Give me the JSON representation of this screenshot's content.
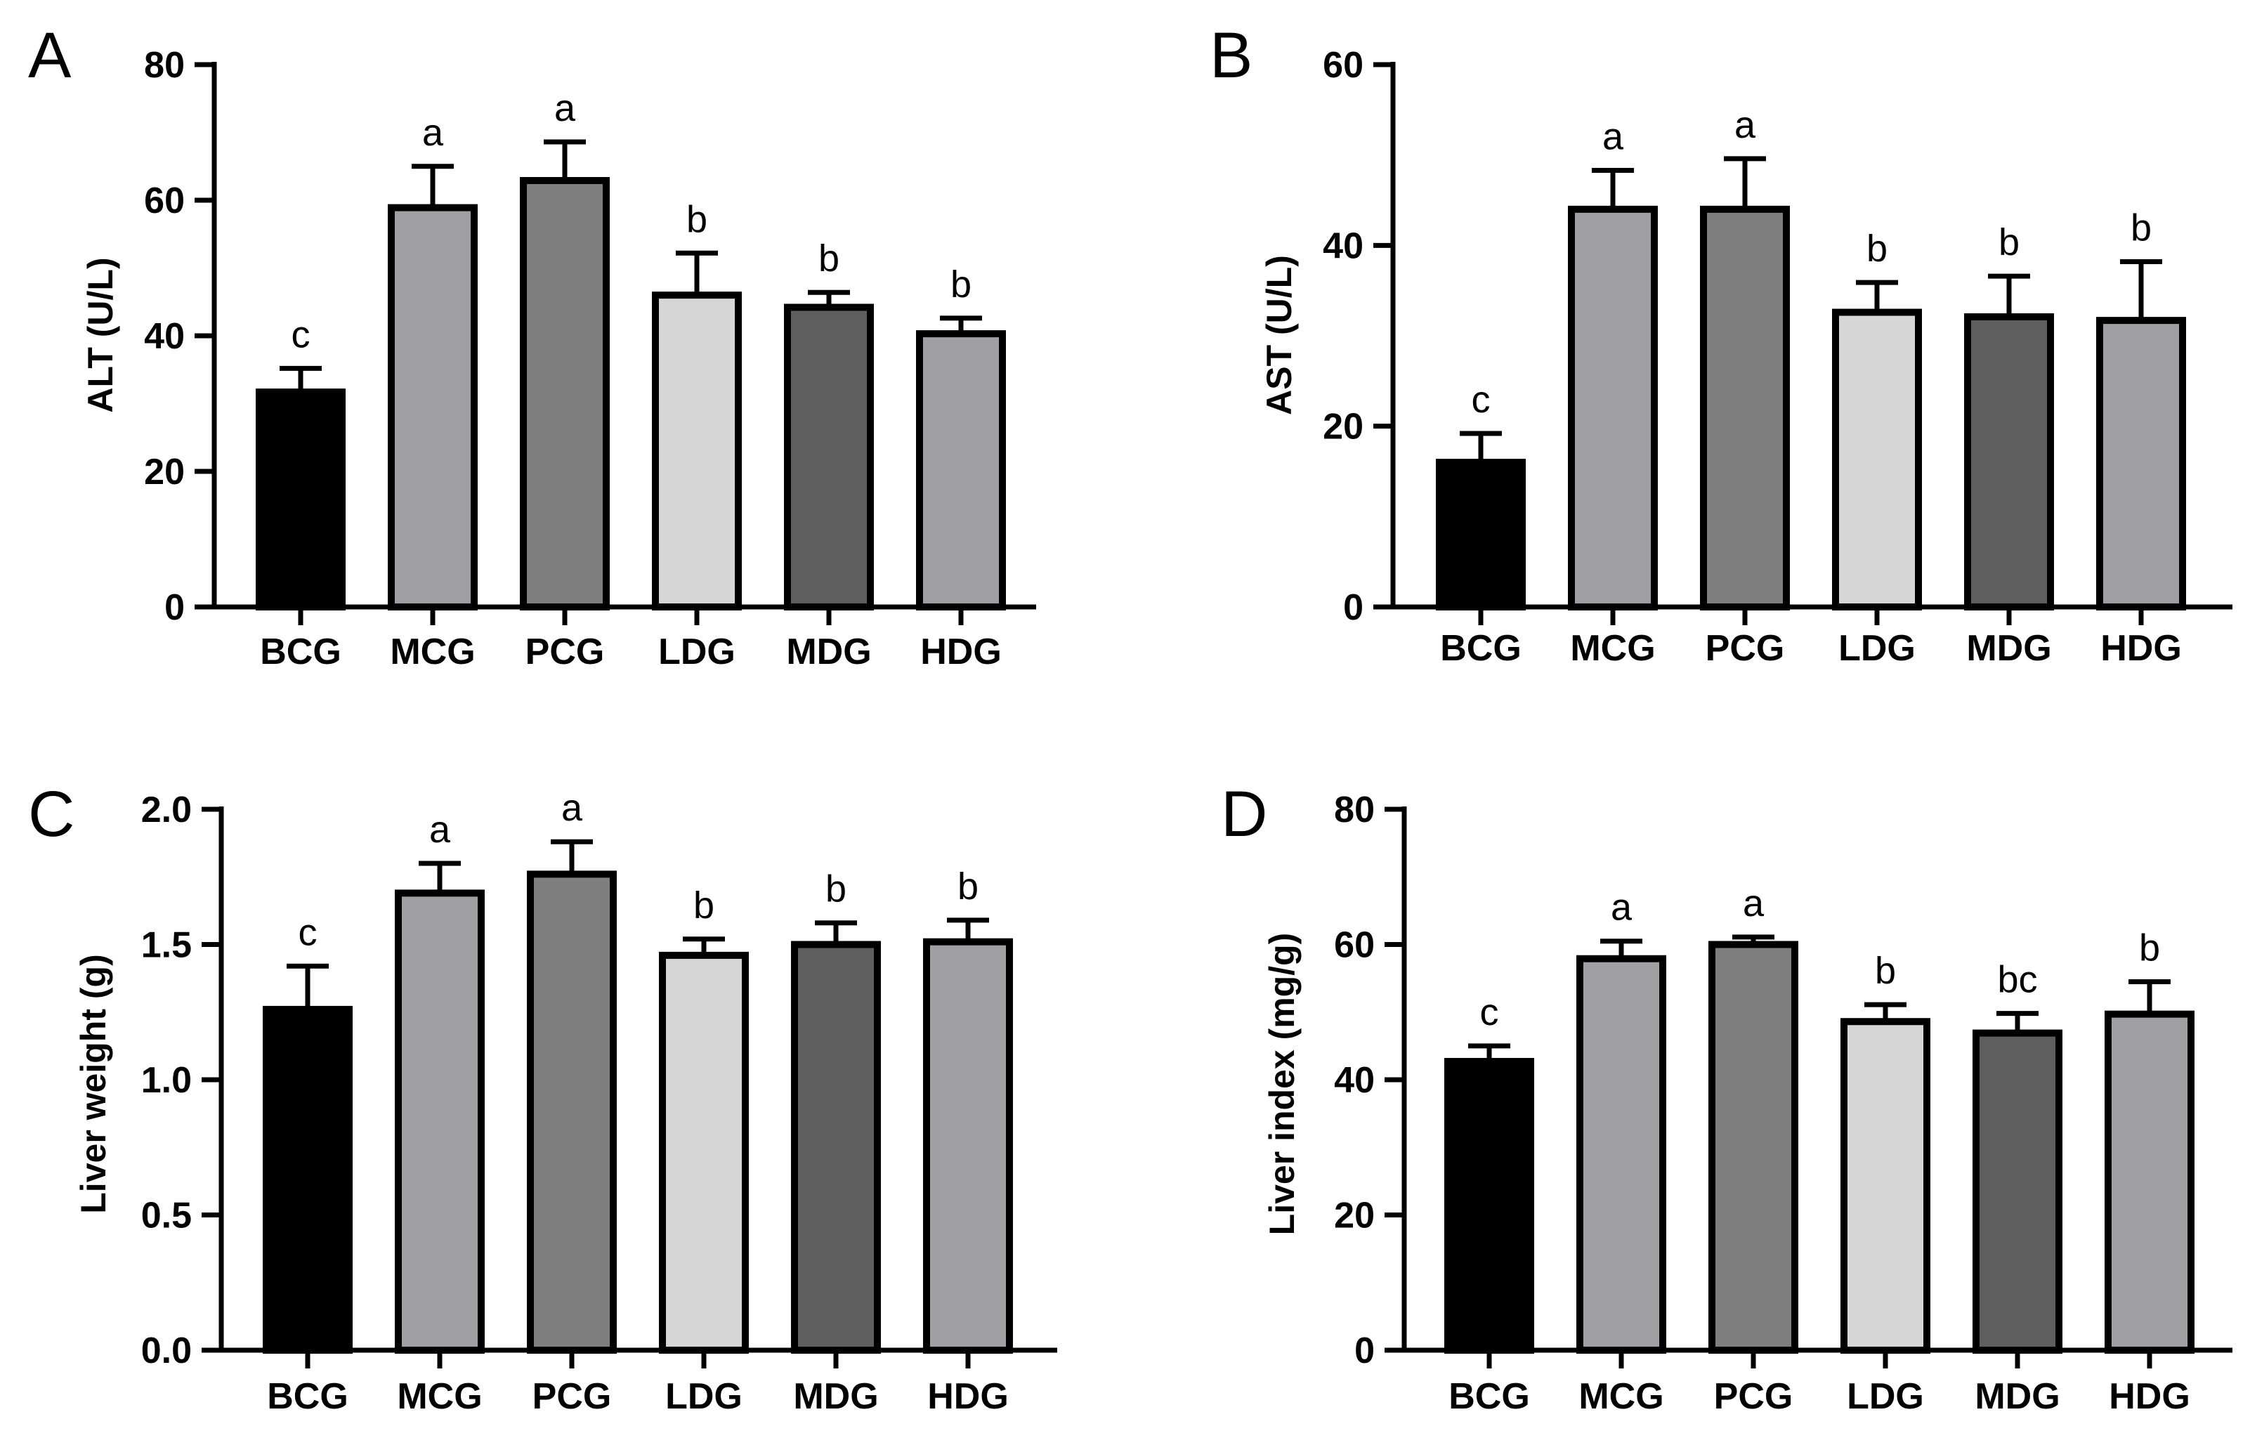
{
  "figure": {
    "bar_colors": [
      "#000000",
      "#a0a0a2",
      "#7f7f7f",
      "#d6d6d6",
      "#5e5e5e",
      "#a0a0a2"
    ],
    "outline_color": "#000000"
  },
  "chart_data": [
    {
      "panel": "A",
      "type": "bar",
      "ylabel": "ALT (U/L)",
      "categories": [
        "BCG",
        "MCG",
        "PCG",
        "LDG",
        "MDG",
        "HDG"
      ],
      "values": [
        31.7,
        58.9,
        62.9,
        46.0,
        44.2,
        40.3
      ],
      "errors": [
        3.5,
        6.1,
        5.7,
        6.2,
        2.2,
        2.3
      ],
      "significance": [
        "c",
        "a",
        "a",
        "b",
        "b",
        "b"
      ],
      "ylim": [
        0,
        80
      ],
      "yticks": [
        0,
        20,
        40,
        60,
        80
      ],
      "ytick_labels": [
        "0",
        "20",
        "40",
        "60",
        "80"
      ]
    },
    {
      "panel": "B",
      "type": "bar",
      "ylabel": "AST (U/L)",
      "categories": [
        "BCG",
        "MCG",
        "PCG",
        "LDG",
        "MDG",
        "HDG"
      ],
      "values": [
        16.0,
        44.0,
        44.0,
        32.6,
        32.1,
        31.7
      ],
      "errors": [
        3.2,
        4.3,
        5.6,
        3.3,
        4.5,
        6.5
      ],
      "significance": [
        "c",
        "a",
        "a",
        "b",
        "b",
        "b"
      ],
      "ylim": [
        0,
        60
      ],
      "yticks": [
        0,
        20,
        40,
        60
      ],
      "ytick_labels": [
        "0",
        "20",
        "40",
        "60"
      ]
    },
    {
      "panel": "C",
      "type": "bar",
      "ylabel": "Liver weight (g)",
      "categories": [
        "BCG",
        "MCG",
        "PCG",
        "LDG",
        "MDG",
        "HDG"
      ],
      "values": [
        1.26,
        1.69,
        1.76,
        1.46,
        1.5,
        1.51
      ],
      "errors": [
        0.16,
        0.11,
        0.12,
        0.06,
        0.08,
        0.08
      ],
      "significance": [
        "c",
        "a",
        "a",
        "b",
        "b",
        "b"
      ],
      "ylim": [
        0,
        2.0
      ],
      "yticks": [
        0,
        0.5,
        1.0,
        1.5,
        2.0
      ],
      "ytick_labels": [
        "0.0",
        "0.5",
        "1.0",
        "1.5",
        "2.0"
      ]
    },
    {
      "panel": "D",
      "type": "bar",
      "ylabel": "Liver index (mg/g)",
      "categories": [
        "BCG",
        "MCG",
        "PCG",
        "LDG",
        "MDG",
        "HDG"
      ],
      "values": [
        42.7,
        57.9,
        60.0,
        48.6,
        46.9,
        49.7
      ],
      "errors": [
        2.3,
        2.6,
        1.1,
        2.5,
        2.9,
        4.8
      ],
      "significance": [
        "c",
        "a",
        "a",
        "b",
        "bc",
        "b"
      ],
      "ylim": [
        0,
        80
      ],
      "yticks": [
        0,
        20,
        40,
        60,
        80
      ],
      "ytick_labels": [
        "0",
        "20",
        "40",
        "60",
        "80"
      ]
    }
  ]
}
